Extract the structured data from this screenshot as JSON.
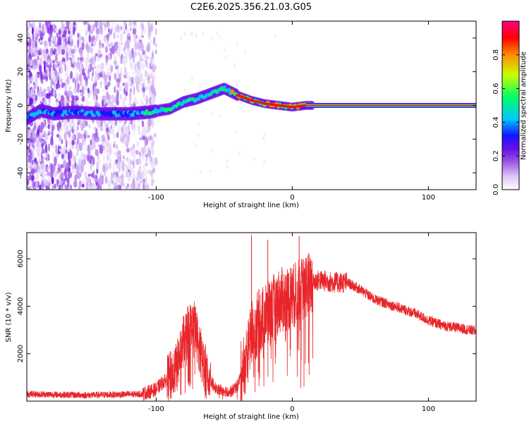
{
  "title": "C2E6.2025.356.21.03.G05",
  "chart_data": [
    {
      "type": "heatmap",
      "name": "spectrogram",
      "xlabel": "Height of straight line (km)",
      "ylabel": "Frequency (Hz)",
      "xlim": [
        -195,
        135
      ],
      "ylim": [
        -50,
        50
      ],
      "xticks": [
        -100,
        0,
        100
      ],
      "xtick_labels": [
        "-100",
        "0",
        "100"
      ],
      "yticks": [
        -40,
        -20,
        0,
        20,
        40
      ],
      "ytick_labels": [
        "-40",
        "-20",
        "0",
        "20",
        "40"
      ],
      "colorbar": {
        "label": "Normalized spectral amplitude",
        "range": [
          0,
          1
        ],
        "ticks": [
          0.0,
          0.2,
          0.4,
          0.6,
          0.8
        ],
        "tick_labels": [
          "0.0",
          "0.2",
          "0.4",
          "0.6",
          "0.8"
        ],
        "colors": [
          "#ffffff",
          "#dcc6f5",
          "#a05ae6",
          "#6a10e8",
          "#1414ff",
          "#00c8ff",
          "#00ff64",
          "#c8ff00",
          "#ff8c00",
          "#ff0000",
          "#ff0080"
        ]
      },
      "ridge": {
        "x": [
          -195,
          -185,
          -175,
          -160,
          -140,
          -120,
          -105,
          -90,
          -80,
          -70,
          -60,
          -50,
          -45,
          -40,
          -30,
          -20,
          -10,
          0,
          10,
          20,
          40,
          80,
          135
        ],
        "y": [
          -8,
          -3,
          -5,
          -4,
          -5,
          -5,
          -4,
          -2,
          2,
          4,
          7,
          10,
          8,
          6,
          3,
          1,
          0,
          -1,
          0,
          0,
          0,
          0,
          0
        ]
      }
    },
    {
      "type": "line",
      "name": "snr",
      "xlabel": "Height of straight line (km)",
      "ylabel": "SNR (10 * v/v)",
      "xlim": [
        -195,
        135
      ],
      "ylim": [
        0,
        7100
      ],
      "xticks": [
        -100,
        0,
        100
      ],
      "xtick_labels": [
        "-100",
        "0",
        "100"
      ],
      "yticks": [
        2000,
        4000,
        6000
      ],
      "ytick_labels": [
        "2000",
        "4000",
        "6000"
      ],
      "color": "#e8262a",
      "envelope": {
        "x": [
          -195,
          -150,
          -110,
          -100,
          -95,
          -90,
          -85,
          -80,
          -77,
          -72,
          -68,
          -65,
          -62,
          -58,
          -55,
          -45,
          -40,
          -33,
          -30,
          -25,
          -20,
          -15,
          -10,
          -5,
          0,
          5,
          10,
          20,
          30,
          40,
          50,
          60,
          70,
          80,
          90,
          100,
          110,
          120,
          135
        ],
        "y": [
          300,
          250,
          300,
          500,
          800,
          1000,
          1400,
          2500,
          3000,
          3200,
          2200,
          1500,
          1000,
          700,
          500,
          400,
          700,
          2000,
          2800,
          3300,
          3600,
          3900,
          4200,
          4300,
          4400,
          4600,
          4900,
          5100,
          5000,
          5000,
          4700,
          4300,
          4100,
          3900,
          3700,
          3400,
          3200,
          3100,
          2950
        ]
      },
      "spikes": [
        [
          -30,
          7000
        ],
        [
          -18,
          6800
        ],
        [
          -10,
          5200
        ],
        [
          5,
          6950
        ],
        [
          -12,
          2400
        ],
        [
          12,
          1600
        ],
        [
          -75,
          4000
        ],
        [
          -80,
          3600
        ],
        [
          -5,
          2500
        ],
        [
          -25,
          1200
        ]
      ]
    }
  ]
}
